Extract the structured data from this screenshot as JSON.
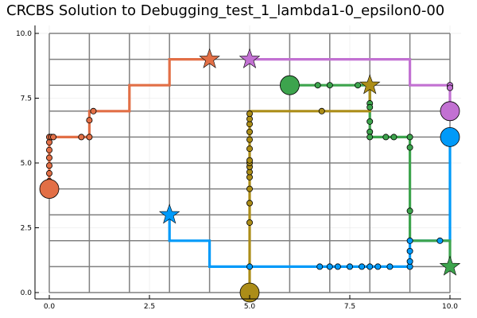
{
  "chart_data": {
    "type": "line",
    "title": "CRCBS Solution to Debugging_test_1_lambda1-0_epsilon0-00",
    "xlim": [
      0,
      10
    ],
    "ylim": [
      0,
      10
    ],
    "x_ticks": [
      "0.0",
      "2.5",
      "5.0",
      "7.5",
      "10.0"
    ],
    "y_ticks": [
      "0.0",
      "2.5",
      "5.0",
      "7.5",
      "10.0"
    ],
    "x_tick_values": [
      0,
      2.5,
      5,
      7.5,
      10
    ],
    "y_tick_values": [
      0,
      2.5,
      5,
      7.5,
      10
    ],
    "grid": true,
    "legend": "none",
    "background_graph": {
      "color": "#808080",
      "vertical_lines": [
        0,
        1,
        2,
        3,
        4,
        5,
        6,
        7,
        8,
        9,
        10
      ],
      "horizontal_lines": [
        0,
        1,
        2,
        3,
        4,
        5,
        6,
        7,
        8,
        9,
        10
      ]
    },
    "series": [
      {
        "color": "#e26f46",
        "path": [
          [
            0,
            4
          ],
          [
            0,
            6
          ],
          [
            1,
            6
          ],
          [
            1,
            7
          ],
          [
            2,
            7
          ],
          [
            2,
            8
          ],
          [
            3,
            8
          ],
          [
            3,
            9
          ],
          [
            4,
            9
          ]
        ],
        "points": [
          [
            0,
            4
          ],
          [
            0,
            4.3
          ],
          [
            0,
            4.6
          ],
          [
            0,
            4.9
          ],
          [
            0,
            5.2
          ],
          [
            0,
            5.5
          ],
          [
            0,
            5.8
          ],
          [
            0,
            6
          ],
          [
            0.05,
            6
          ],
          [
            0.1,
            6
          ],
          [
            0.8,
            6
          ],
          [
            1,
            6
          ],
          [
            1,
            6.65
          ],
          [
            1.1,
            7
          ]
        ],
        "start": [
          0,
          4
        ],
        "goal": [
          4,
          9
        ]
      },
      {
        "color": "#009af9",
        "path": [
          [
            3,
            3
          ],
          [
            3,
            2
          ],
          [
            4,
            2
          ],
          [
            4,
            1
          ],
          [
            9,
            1
          ],
          [
            9,
            2
          ],
          [
            10,
            2
          ],
          [
            10,
            6
          ]
        ],
        "points": [
          [
            5,
            1
          ],
          [
            6.75,
            1
          ],
          [
            7,
            1
          ],
          [
            7.2,
            1
          ],
          [
            7.5,
            1
          ],
          [
            7.8,
            1
          ],
          [
            8,
            1
          ],
          [
            8.2,
            1
          ],
          [
            8.5,
            1
          ],
          [
            9,
            1
          ],
          [
            9,
            1.2
          ],
          [
            9,
            1.6
          ],
          [
            9,
            2
          ],
          [
            9.75,
            2
          ]
        ],
        "start": [
          10,
          6
        ],
        "goal": [
          3,
          3
        ]
      },
      {
        "color": "#3da44d",
        "path": [
          [
            6,
            8
          ],
          [
            8,
            8
          ],
          [
            8,
            6
          ],
          [
            9,
            6
          ],
          [
            9,
            2
          ],
          [
            10,
            2
          ],
          [
            10,
            1
          ]
        ],
        "points": [
          [
            6.15,
            8
          ],
          [
            6.7,
            8
          ],
          [
            7,
            8
          ],
          [
            7.7,
            8
          ],
          [
            8,
            8
          ],
          [
            8,
            7.3
          ],
          [
            8,
            7.15
          ],
          [
            8,
            6.6
          ],
          [
            8,
            6.2
          ],
          [
            8,
            6
          ],
          [
            8.4,
            6
          ],
          [
            8.6,
            6
          ],
          [
            9,
            6
          ],
          [
            9,
            5.6
          ],
          [
            9,
            3.15
          ]
        ],
        "start": [
          6,
          8
        ],
        "goal": [
          10,
          1
        ]
      },
      {
        "color": "#c271d2",
        "path": [
          [
            5,
            9
          ],
          [
            9,
            9
          ],
          [
            9,
            8
          ],
          [
            10,
            8
          ],
          [
            10,
            7
          ]
        ],
        "points": [
          [
            10,
            8
          ],
          [
            10,
            7.9
          ],
          [
            10,
            7
          ]
        ],
        "start": [
          10,
          7
        ],
        "goal": [
          5,
          9
        ]
      },
      {
        "color": "#ac8d18",
        "path": [
          [
            5,
            0
          ],
          [
            5,
            7
          ],
          [
            8,
            7
          ],
          [
            8,
            8
          ]
        ],
        "points": [
          [
            5,
            2.7
          ],
          [
            5,
            3.45
          ],
          [
            5,
            4
          ],
          [
            5,
            4.45
          ],
          [
            5,
            4.65
          ],
          [
            5,
            4.85
          ],
          [
            5,
            5
          ],
          [
            5,
            5.1
          ],
          [
            5,
            5.55
          ],
          [
            5,
            5.9
          ],
          [
            5,
            6.2
          ],
          [
            5,
            6.5
          ],
          [
            5,
            6.7
          ],
          [
            5,
            6.9
          ],
          [
            6.8,
            7
          ],
          [
            8,
            8.05
          ]
        ],
        "start": [
          5,
          0
        ],
        "goal": [
          8,
          8
        ]
      }
    ]
  }
}
